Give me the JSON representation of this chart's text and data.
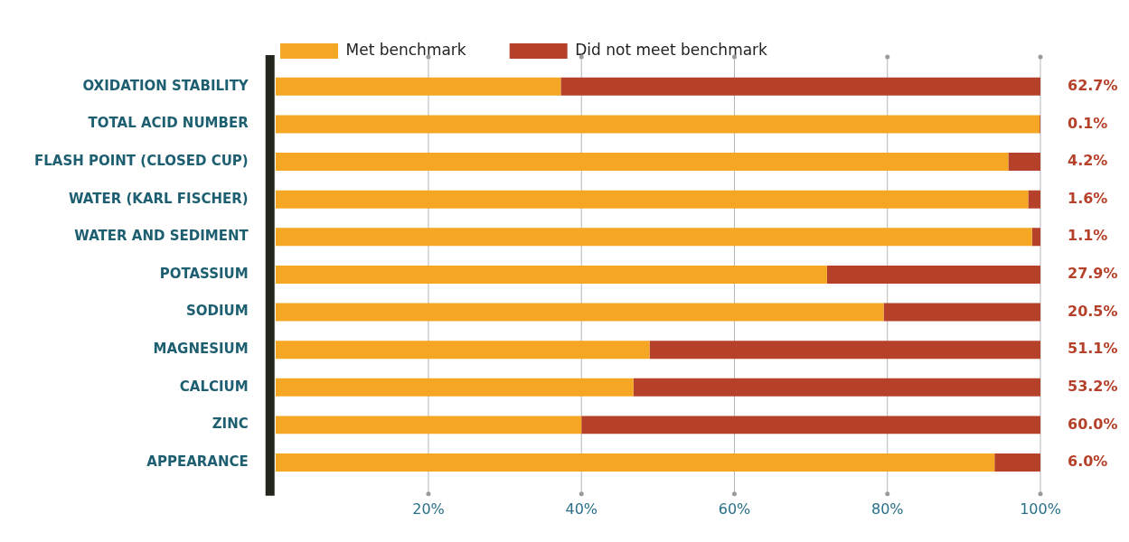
{
  "chart_data": {
    "type": "bar",
    "orientation": "horizontal",
    "stacked": true,
    "categories": [
      "OXIDATION STABILITY",
      "TOTAL ACID NUMBER",
      "FLASH POINT (CLOSED CUP)",
      "WATER (KARL FISCHER)",
      "WATER AND SEDIMENT",
      "POTASSIUM",
      "SODIUM",
      "MAGNESIUM",
      "CALCIUM",
      "ZINC",
      "APPEARANCE"
    ],
    "series": [
      {
        "name": "Met benchmark",
        "color": "#f5a623",
        "values": [
          37.3,
          99.9,
          95.8,
          98.4,
          98.9,
          72.1,
          79.5,
          48.9,
          46.8,
          40.0,
          94.0
        ]
      },
      {
        "name": "Did not meet benchmark",
        "color": "#b5412a",
        "values": [
          62.7,
          0.1,
          4.2,
          1.6,
          1.1,
          27.9,
          20.5,
          51.1,
          53.2,
          60.0,
          6.0
        ],
        "value_labels": [
          "62.7%",
          "0.1%",
          "4.2%",
          "1.6%",
          "1.1%",
          "27.9%",
          "20.5%",
          "51.1%",
          "53.2%",
          "60.0%",
          "6.0%"
        ]
      }
    ],
    "xlim": [
      0,
      100
    ],
    "xticks": [
      {
        "value": 20,
        "label": "20%"
      },
      {
        "value": 40,
        "label": "40%"
      },
      {
        "value": 60,
        "label": "60%"
      },
      {
        "value": 80,
        "label": "80%"
      },
      {
        "value": 100,
        "label": "100%"
      }
    ],
    "grid": "x",
    "legend": "top"
  }
}
